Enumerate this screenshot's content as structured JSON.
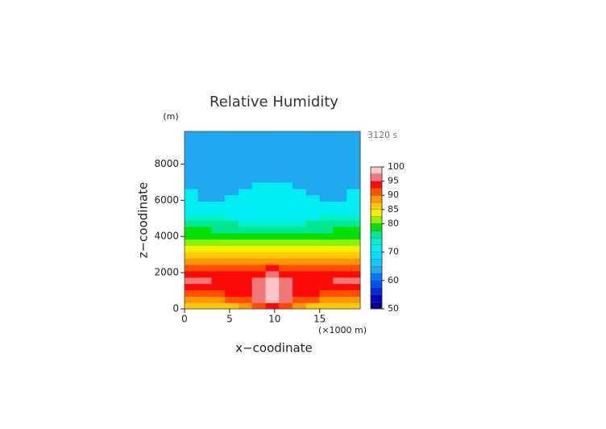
{
  "chart_data": {
    "type": "contour",
    "title": "Relative Humidity",
    "y_unit": "(m)",
    "x_unit": "(×1000 m)",
    "time_label": "3120 s",
    "x_label": "x−coodinate",
    "y_label": "z−coodinate",
    "xlim": [
      0,
      19.5
    ],
    "ylim": [
      0,
      9800
    ],
    "xticks": [
      0,
      5,
      10,
      15
    ],
    "yticks": [
      0,
      2000,
      4000,
      6000,
      8000
    ],
    "x": [
      0.75,
      2.25,
      3.75,
      5.25,
      6.75,
      8.25,
      9.75,
      11.25,
      12.75,
      14.25,
      15.75,
      17.25,
      18.75
    ],
    "y": [
      175,
      525,
      875,
      1225,
      1575,
      1925,
      2275,
      2625,
      2975,
      3325,
      3675,
      4025,
      4375,
      4725,
      5075,
      5425,
      5775,
      6125,
      6475,
      6825,
      7175,
      7525,
      7875,
      8225,
      8575,
      8925,
      9275,
      9625
    ],
    "z": [
      [
        87,
        87,
        87,
        87,
        88,
        91,
        93,
        91,
        88,
        87,
        87,
        87,
        87
      ],
      [
        89,
        89,
        89,
        90,
        92,
        96,
        99,
        96,
        92,
        90,
        89,
        89,
        89
      ],
      [
        92,
        92,
        92,
        93,
        94,
        97,
        100,
        97,
        94,
        93,
        92,
        92,
        92
      ],
      [
        94,
        93,
        93,
        93,
        94,
        97,
        99,
        97,
        94,
        93,
        93,
        93,
        94
      ],
      [
        96,
        95,
        94,
        93,
        93,
        96,
        98,
        96,
        93,
        93,
        94,
        95,
        96
      ],
      [
        94,
        94,
        93,
        93,
        93,
        94,
        95,
        94,
        93,
        93,
        93,
        94,
        94
      ],
      [
        91,
        91,
        91,
        91,
        91,
        92,
        93,
        92,
        91,
        91,
        91,
        91,
        91
      ],
      [
        88,
        88,
        88,
        88,
        88,
        88,
        89,
        88,
        88,
        88,
        88,
        88,
        88
      ],
      [
        86,
        86,
        86,
        86,
        86,
        86,
        86,
        86,
        86,
        86,
        86,
        86,
        86
      ],
      [
        83,
        83,
        83,
        83,
        83,
        83,
        83,
        83,
        83,
        83,
        83,
        83,
        83
      ],
      [
        81,
        81,
        81,
        81,
        81,
        81,
        81,
        81,
        81,
        81,
        81,
        81,
        81
      ],
      [
        79,
        79,
        79,
        79,
        79,
        79,
        79,
        79,
        79,
        79,
        79,
        79,
        79
      ],
      [
        79,
        78,
        77,
        77,
        77,
        77,
        77,
        77,
        77,
        77,
        77,
        78,
        79
      ],
      [
        76,
        76,
        75,
        75,
        74,
        73,
        73,
        73,
        74,
        75,
        75,
        76,
        76
      ],
      [
        74,
        74,
        73,
        72,
        71,
        71,
        71,
        71,
        71,
        72,
        73,
        74,
        74
      ],
      [
        72,
        71,
        71,
        71,
        70,
        70,
        70,
        70,
        70,
        71,
        71,
        71,
        72
      ],
      [
        70,
        70,
        70,
        70,
        70,
        70,
        70,
        70,
        70,
        70,
        70,
        70,
        70
      ],
      [
        70,
        63,
        63,
        70,
        70,
        70,
        70,
        70,
        70,
        70,
        63,
        63,
        70
      ],
      [
        70,
        63,
        63,
        63,
        70,
        70,
        70,
        70,
        70,
        63,
        63,
        63,
        70
      ],
      [
        63,
        63,
        63,
        63,
        63,
        70,
        70,
        70,
        63,
        63,
        63,
        63,
        63
      ],
      [
        63,
        63,
        63,
        63,
        63,
        63,
        63,
        63,
        63,
        63,
        63,
        63,
        63
      ],
      [
        63,
        63,
        63,
        63,
        63,
        63,
        63,
        63,
        63,
        63,
        63,
        63,
        63
      ],
      [
        63,
        63,
        63,
        63,
        63,
        63,
        63,
        63,
        63,
        63,
        63,
        63,
        63
      ],
      [
        63,
        63,
        63,
        63,
        63,
        63,
        63,
        63,
        63,
        63,
        63,
        63,
        63
      ],
      [
        63,
        63,
        63,
        63,
        63,
        63,
        63,
        63,
        63,
        63,
        63,
        63,
        63
      ],
      [
        63,
        63,
        63,
        63,
        63,
        63,
        63,
        63,
        63,
        63,
        63,
        63,
        63
      ],
      [
        63,
        63,
        63,
        63,
        63,
        63,
        63,
        63,
        63,
        63,
        63,
        63,
        63
      ],
      [
        63,
        63,
        63,
        63,
        63,
        63,
        63,
        63,
        63,
        63,
        63,
        63,
        63
      ]
    ],
    "colorbar": {
      "levels": [
        50,
        52.5,
        55,
        57.5,
        60,
        62.5,
        65,
        67.5,
        70,
        72.5,
        75,
        77.5,
        80,
        82.5,
        85,
        87.5,
        90,
        92.5,
        95,
        97.5,
        100
      ],
      "colors": [
        "#000090",
        "#0000c0",
        "#0028e0",
        "#0050f0",
        "#0078ff",
        "#20a8f0",
        "#10c8ff",
        "#00e0ff",
        "#00eef2",
        "#00f0d0",
        "#00e890",
        "#00e000",
        "#90f000",
        "#f0f000",
        "#ffc800",
        "#ff9600",
        "#ff5000",
        "#ff0a0a",
        "#f07878",
        "#ffc4c4"
      ],
      "ticks": [
        50,
        60,
        70,
        80,
        85,
        90,
        95,
        100
      ]
    }
  }
}
